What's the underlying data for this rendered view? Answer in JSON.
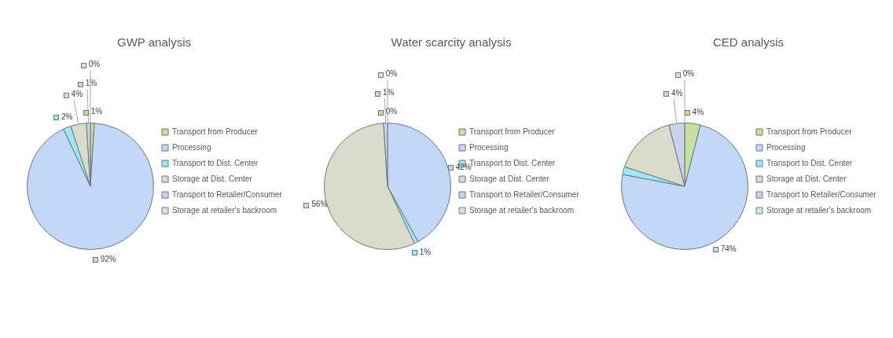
{
  "chart_data": [
    {
      "type": "pie",
      "title": "GWP analysis",
      "categories": [
        "Transport from Producer",
        "Processing",
        "Transport to Dist. Center",
        "Storage at Dist. Center",
        "Transport to Retailer/Consumer",
        "Storage at retailer's backroom"
      ],
      "values": [
        1,
        92,
        2,
        4,
        1,
        0
      ],
      "value_labels": [
        "1%",
        "92%",
        "2%",
        "4%",
        "1%",
        "0%"
      ],
      "colors": [
        "#c6e0a0",
        "#c3d7f7",
        "#9fe6f5",
        "#d9dccb",
        "#c9d3e8",
        "#cfe3ef"
      ],
      "legend": "right"
    },
    {
      "type": "pie",
      "title": "Water scarcity analysis",
      "categories": [
        "Transport from Producer",
        "Processing",
        "Transport to Dist. Center",
        "Storage at Dist. Center",
        "Transport to Retailer/Consumer",
        "Storage at retailer's backroom"
      ],
      "values": [
        0,
        42,
        1,
        56,
        1,
        0
      ],
      "value_labels": [
        "0%",
        "42%",
        "1%",
        "56%",
        "1%",
        "0%"
      ],
      "colors": [
        "#c6e0a0",
        "#c3d7f7",
        "#9fe6f5",
        "#d9dccb",
        "#c9d3e8",
        "#cfe3ef"
      ],
      "legend": "right"
    },
    {
      "type": "pie",
      "title": "CED analysis",
      "categories": [
        "Transport from Producer",
        "Processing",
        "Transport to Dist. Center",
        "Storage at Dist. Center",
        "Transport to Retailer/Consumer",
        "Storage at retailer's backroom"
      ],
      "values": [
        4,
        74,
        2,
        16,
        4,
        0
      ],
      "value_labels": [
        "4%",
        "74%",
        null,
        null,
        "4%",
        "0%"
      ],
      "colors": [
        "#c6e0a0",
        "#c3d7f7",
        "#9fe6f5",
        "#d9dccb",
        "#c9d3e8",
        "#cfe3ef"
      ],
      "legend": "right"
    }
  ]
}
